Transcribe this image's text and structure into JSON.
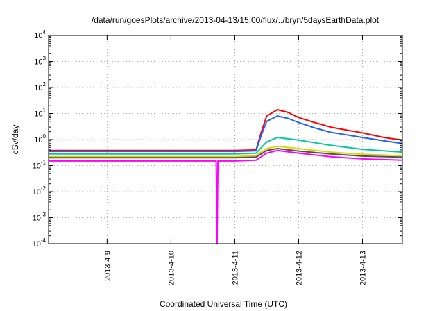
{
  "chart_data": {
    "type": "line",
    "title": "/data/run/goesPlots/archive/2013-04-13/15:00/flux/../bryn/5daysEarthData.plot",
    "xlabel": "Coordinated Universal Time (UTC)",
    "ylabel": "cSv/day",
    "yscale": "log",
    "ylim": [
      0.0001,
      10000
    ],
    "xlim": [
      "2013-04-08T02:00",
      "2013-04-13T15:00"
    ],
    "y_ticks": [
      {
        "mant": "10",
        "exp": "-4"
      },
      {
        "mant": "10",
        "exp": "-3"
      },
      {
        "mant": "10",
        "exp": "-2"
      },
      {
        "mant": "10",
        "exp": "-1"
      },
      {
        "mant": "10",
        "exp": "0"
      },
      {
        "mant": "10",
        "exp": "1"
      },
      {
        "mant": "10",
        "exp": "2"
      },
      {
        "mant": "10",
        "exp": "3"
      },
      {
        "mant": "10",
        "exp": "4"
      }
    ],
    "x_ticks": [
      "2013-4-9",
      "2013-4-10",
      "2013-4-11",
      "2013-4-12",
      "2013-4-13"
    ],
    "grid": true,
    "series": [
      {
        "color": "#ff0000",
        "points": [
          [
            "2013-04-08T02:00",
            0.38
          ],
          [
            "2013-04-09T00:00",
            0.38
          ],
          [
            "2013-04-10T00:00",
            0.38
          ],
          [
            "2013-04-11T00:00",
            0.38
          ],
          [
            "2013-04-11T08:00",
            0.4
          ],
          [
            "2013-04-11T10:00",
            2.0
          ],
          [
            "2013-04-11T12:00",
            8.0
          ],
          [
            "2013-04-11T16:00",
            14.0
          ],
          [
            "2013-04-11T20:00",
            11.0
          ],
          [
            "2013-04-12T00:00",
            7.0
          ],
          [
            "2013-04-12T06:00",
            4.5
          ],
          [
            "2013-04-12T12:00",
            3.0
          ],
          [
            "2013-04-13T00:00",
            1.8
          ],
          [
            "2013-04-13T08:00",
            1.2
          ],
          [
            "2013-04-13T15:00",
            0.95
          ]
        ]
      },
      {
        "color": "#1e64ff",
        "points": [
          [
            "2013-04-08T02:00",
            0.35
          ],
          [
            "2013-04-09T00:00",
            0.35
          ],
          [
            "2013-04-10T00:00",
            0.35
          ],
          [
            "2013-04-11T00:00",
            0.35
          ],
          [
            "2013-04-11T08:00",
            0.37
          ],
          [
            "2013-04-11T10:00",
            1.5
          ],
          [
            "2013-04-11T12:00",
            5.0
          ],
          [
            "2013-04-11T16:00",
            8.0
          ],
          [
            "2013-04-11T20:00",
            6.5
          ],
          [
            "2013-04-12T00:00",
            4.5
          ],
          [
            "2013-04-12T06:00",
            2.8
          ],
          [
            "2013-04-12T12:00",
            1.9
          ],
          [
            "2013-04-13T00:00",
            1.2
          ],
          [
            "2013-04-13T08:00",
            0.9
          ],
          [
            "2013-04-13T15:00",
            0.7
          ]
        ]
      },
      {
        "color": "#00c8a0",
        "points": [
          [
            "2013-04-08T02:00",
            0.28
          ],
          [
            "2013-04-09T00:00",
            0.28
          ],
          [
            "2013-04-10T00:00",
            0.28
          ],
          [
            "2013-04-11T00:00",
            0.28
          ],
          [
            "2013-04-11T08:00",
            0.3
          ],
          [
            "2013-04-11T12:00",
            0.8
          ],
          [
            "2013-04-11T16:00",
            1.2
          ],
          [
            "2013-04-12T00:00",
            0.95
          ],
          [
            "2013-04-12T12:00",
            0.6
          ],
          [
            "2013-04-13T00:00",
            0.42
          ],
          [
            "2013-04-13T15:00",
            0.33
          ]
        ]
      },
      {
        "color": "#e6d200",
        "points": [
          [
            "2013-04-08T02:00",
            0.22
          ],
          [
            "2013-04-09T00:00",
            0.22
          ],
          [
            "2013-04-10T00:00",
            0.22
          ],
          [
            "2013-04-11T00:00",
            0.22
          ],
          [
            "2013-04-11T08:00",
            0.24
          ],
          [
            "2013-04-11T12:00",
            0.45
          ],
          [
            "2013-04-11T16:00",
            0.55
          ],
          [
            "2013-04-12T00:00",
            0.45
          ],
          [
            "2013-04-12T12:00",
            0.33
          ],
          [
            "2013-04-13T00:00",
            0.27
          ],
          [
            "2013-04-13T15:00",
            0.24
          ]
        ]
      },
      {
        "color": "#505050",
        "points": [
          [
            "2013-04-08T02:00",
            0.2
          ],
          [
            "2013-04-09T00:00",
            0.2
          ],
          [
            "2013-04-10T00:00",
            0.2
          ],
          [
            "2013-04-11T00:00",
            0.2
          ],
          [
            "2013-04-11T08:00",
            0.21
          ],
          [
            "2013-04-11T12:00",
            0.38
          ],
          [
            "2013-04-11T16:00",
            0.45
          ],
          [
            "2013-04-12T00:00",
            0.36
          ],
          [
            "2013-04-12T12:00",
            0.28
          ],
          [
            "2013-04-13T00:00",
            0.23
          ],
          [
            "2013-04-13T15:00",
            0.21
          ]
        ]
      },
      {
        "color": "#ff00ff",
        "points": [
          [
            "2013-04-08T02:00",
            0.15
          ],
          [
            "2013-04-09T00:00",
            0.15
          ],
          [
            "2013-04-10T00:00",
            0.15
          ],
          [
            "2013-04-10T17:00",
            0.15
          ],
          [
            "2013-04-10T17:20",
            0.0001
          ],
          [
            "2013-04-10T17:40",
            0.15
          ],
          [
            "2013-04-11T00:00",
            0.15
          ],
          [
            "2013-04-11T08:00",
            0.16
          ],
          [
            "2013-04-11T12:00",
            0.3
          ],
          [
            "2013-04-11T16:00",
            0.38
          ],
          [
            "2013-04-12T00:00",
            0.3
          ],
          [
            "2013-04-12T12:00",
            0.22
          ],
          [
            "2013-04-13T00:00",
            0.18
          ],
          [
            "2013-04-13T15:00",
            0.16
          ]
        ]
      }
    ]
  }
}
